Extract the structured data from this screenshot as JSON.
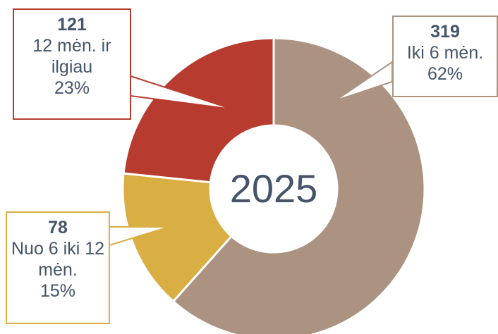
{
  "chart_data": {
    "type": "donut",
    "center_label": "2025",
    "categories": [
      "Iki 6 mėn.",
      "Nuo 6 iki 12 mėn.",
      "12 mėn. ir ilgiau"
    ],
    "values": [
      319,
      78,
      121
    ],
    "percent_labels": [
      "62%",
      "15%",
      "23%"
    ],
    "colors": [
      "#AC9381",
      "#D9AE42",
      "#B83B2F"
    ]
  }
}
